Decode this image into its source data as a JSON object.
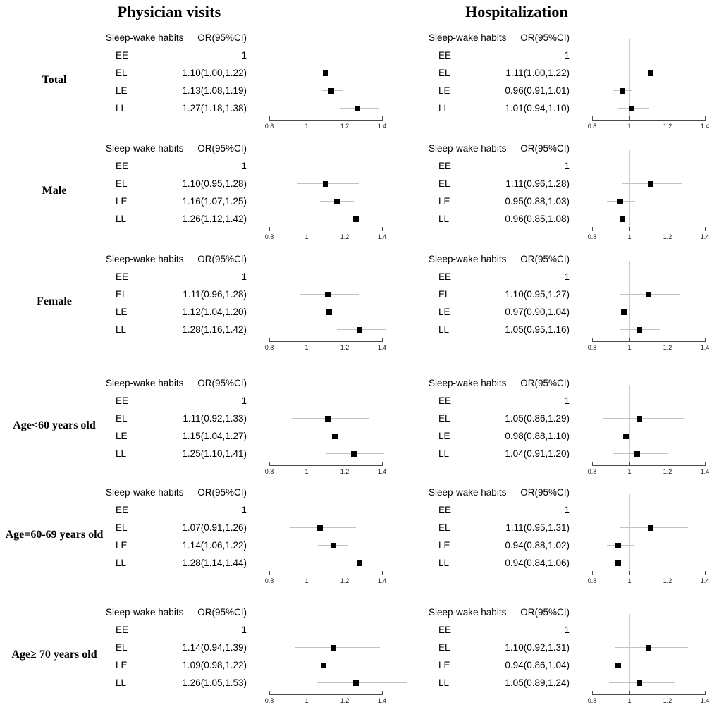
{
  "chart_data": {
    "type": "forest",
    "title_left": "Physician visits",
    "title_right": "Hospitalization",
    "column_headers": {
      "habits": "Sleep-wake habits",
      "or": "OR(95%CI)"
    },
    "axis": {
      "min": 0.8,
      "max": 1.4,
      "tick_values": [
        0.8,
        1.0,
        1.2,
        1.4
      ],
      "tick_labels": [
        "0.8",
        "1",
        "1.2",
        "1.4"
      ],
      "reference_line": 1.0
    },
    "colors": {
      "marker": "#000000",
      "ci_line": "#c2c2c2",
      "reference_line": "#cccccc",
      "axis_line": "#4a4a4a",
      "text": "#000000",
      "background": "#ffffff"
    },
    "groups": [
      {
        "label": "Total",
        "physician_visits": [
          {
            "habit": "EE",
            "or_text": "1",
            "or": 1.0,
            "lo": null,
            "hi": null
          },
          {
            "habit": "EL",
            "or_text": "1.10(1.00,1.22)",
            "or": 1.1,
            "lo": 1.0,
            "hi": 1.22
          },
          {
            "habit": "LE",
            "or_text": "1.13(1.08,1.19)",
            "or": 1.13,
            "lo": 1.08,
            "hi": 1.19
          },
          {
            "habit": "LL",
            "or_text": "1.27(1.18,1.38)",
            "or": 1.27,
            "lo": 1.18,
            "hi": 1.38
          }
        ],
        "hospitalization": [
          {
            "habit": "EE",
            "or_text": "1",
            "or": 1.0,
            "lo": null,
            "hi": null
          },
          {
            "habit": "EL",
            "or_text": "1.11(1.00,1.22)",
            "or": 1.11,
            "lo": 1.0,
            "hi": 1.22
          },
          {
            "habit": "LE",
            "or_text": "0.96(0.91,1.01)",
            "or": 0.96,
            "lo": 0.91,
            "hi": 1.01
          },
          {
            "habit": "LL",
            "or_text": "1.01(0.94,1.10)",
            "or": 1.01,
            "lo": 0.94,
            "hi": 1.1
          }
        ]
      },
      {
        "label": "Male",
        "physician_visits": [
          {
            "habit": "EE",
            "or_text": "1",
            "or": 1.0,
            "lo": null,
            "hi": null
          },
          {
            "habit": "EL",
            "or_text": "1.10(0.95,1.28)",
            "or": 1.1,
            "lo": 0.95,
            "hi": 1.28
          },
          {
            "habit": "LE",
            "or_text": "1.16(1.07,1.25)",
            "or": 1.16,
            "lo": 1.07,
            "hi": 1.25
          },
          {
            "habit": "LL",
            "or_text": "1.26(1.12,1.42)",
            "or": 1.26,
            "lo": 1.12,
            "hi": 1.42
          }
        ],
        "hospitalization": [
          {
            "habit": "EE",
            "or_text": "1",
            "or": 1.0,
            "lo": null,
            "hi": null
          },
          {
            "habit": "EL",
            "or_text": "1.11(0.96,1.28)",
            "or": 1.11,
            "lo": 0.96,
            "hi": 1.28
          },
          {
            "habit": "LE",
            "or_text": "0.95(0.88,1.03)",
            "or": 0.95,
            "lo": 0.88,
            "hi": 1.03
          },
          {
            "habit": "LL",
            "or_text": "0.96(0.85,1.08)",
            "or": 0.96,
            "lo": 0.85,
            "hi": 1.08
          }
        ]
      },
      {
        "label": "Female",
        "physician_visits": [
          {
            "habit": "EE",
            "or_text": "1",
            "or": 1.0,
            "lo": null,
            "hi": null
          },
          {
            "habit": "EL",
            "or_text": "1.11(0.96,1.28)",
            "or": 1.11,
            "lo": 0.96,
            "hi": 1.28
          },
          {
            "habit": "LE",
            "or_text": "1.12(1.04,1.20)",
            "or": 1.12,
            "lo": 1.04,
            "hi": 1.2
          },
          {
            "habit": "LL",
            "or_text": "1.28(1.16,1.42)",
            "or": 1.28,
            "lo": 1.16,
            "hi": 1.42
          }
        ],
        "hospitalization": [
          {
            "habit": "EE",
            "or_text": "1",
            "or": 1.0,
            "lo": null,
            "hi": null
          },
          {
            "habit": "EL",
            "or_text": "1.10(0.95,1.27)",
            "or": 1.1,
            "lo": 0.95,
            "hi": 1.27
          },
          {
            "habit": "LE",
            "or_text": "0.97(0.90,1.04)",
            "or": 0.97,
            "lo": 0.9,
            "hi": 1.04
          },
          {
            "habit": "LL",
            "or_text": "1.05(0.95,1.16)",
            "or": 1.05,
            "lo": 0.95,
            "hi": 1.16
          }
        ]
      },
      {
        "label": "Age<60 years old",
        "physician_visits": [
          {
            "habit": "EE",
            "or_text": "1",
            "or": 1.0,
            "lo": null,
            "hi": null
          },
          {
            "habit": "EL",
            "or_text": "1.11(0.92,1.33)",
            "or": 1.11,
            "lo": 0.92,
            "hi": 1.33
          },
          {
            "habit": "LE",
            "or_text": "1.15(1.04,1.27)",
            "or": 1.15,
            "lo": 1.04,
            "hi": 1.27
          },
          {
            "habit": "LL",
            "or_text": "1.25(1.10,1.41)",
            "or": 1.25,
            "lo": 1.1,
            "hi": 1.41
          }
        ],
        "hospitalization": [
          {
            "habit": "EE",
            "or_text": "1",
            "or": 1.0,
            "lo": null,
            "hi": null
          },
          {
            "habit": "EL",
            "or_text": "1.05(0.86,1.29)",
            "or": 1.05,
            "lo": 0.86,
            "hi": 1.29
          },
          {
            "habit": "LE",
            "or_text": "0.98(0.88,1.10)",
            "or": 0.98,
            "lo": 0.88,
            "hi": 1.1
          },
          {
            "habit": "LL",
            "or_text": "1.04(0.91,1.20)",
            "or": 1.04,
            "lo": 0.91,
            "hi": 1.2
          }
        ]
      },
      {
        "label": "Age=60-69 years old",
        "physician_visits": [
          {
            "habit": "EE",
            "or_text": "1",
            "or": 1.0,
            "lo": null,
            "hi": null
          },
          {
            "habit": "EL",
            "or_text": "1.07(0.91,1.26)",
            "or": 1.07,
            "lo": 0.91,
            "hi": 1.26
          },
          {
            "habit": "LE",
            "or_text": "1.14(1.06,1.22)",
            "or": 1.14,
            "lo": 1.06,
            "hi": 1.22
          },
          {
            "habit": "LL",
            "or_text": "1.28(1.14,1.44)",
            "or": 1.28,
            "lo": 1.14,
            "hi": 1.44
          }
        ],
        "hospitalization": [
          {
            "habit": "EE",
            "or_text": "1",
            "or": 1.0,
            "lo": null,
            "hi": null
          },
          {
            "habit": "EL",
            "or_text": "1.11(0.95,1.31)",
            "or": 1.11,
            "lo": 0.95,
            "hi": 1.31
          },
          {
            "habit": "LE",
            "or_text": "0.94(0.88,1.02)",
            "or": 0.94,
            "lo": 0.88,
            "hi": 1.02
          },
          {
            "habit": "LL",
            "or_text": "0.94(0.84,1.06)",
            "or": 0.94,
            "lo": 0.84,
            "hi": 1.06
          }
        ]
      },
      {
        "label": "Age≥ 70 years old",
        "physician_visits": [
          {
            "habit": "EE",
            "or_text": "1",
            "or": 1.0,
            "lo": null,
            "hi": null
          },
          {
            "habit": "EL",
            "or_text": "1.14(0.94,1.39)",
            "or": 1.14,
            "lo": 0.94,
            "hi": 1.39
          },
          {
            "habit": "LE",
            "or_text": "1.09(0.98,1.22)",
            "or": 1.09,
            "lo": 0.98,
            "hi": 1.22
          },
          {
            "habit": "LL",
            "or_text": "1.26(1.05,1.53)",
            "or": 1.26,
            "lo": 1.05,
            "hi": 1.53
          }
        ],
        "hospitalization": [
          {
            "habit": "EE",
            "or_text": "1",
            "or": 1.0,
            "lo": null,
            "hi": null
          },
          {
            "habit": "EL",
            "or_text": "1.10(0.92,1.31)",
            "or": 1.1,
            "lo": 0.92,
            "hi": 1.31
          },
          {
            "habit": "LE",
            "or_text": "0.94(0.86,1.04)",
            "or": 0.94,
            "lo": 0.86,
            "hi": 1.04
          },
          {
            "habit": "LL",
            "or_text": "1.05(0.89,1.24)",
            "or": 1.05,
            "lo": 0.89,
            "hi": 1.24
          }
        ]
      }
    ]
  }
}
